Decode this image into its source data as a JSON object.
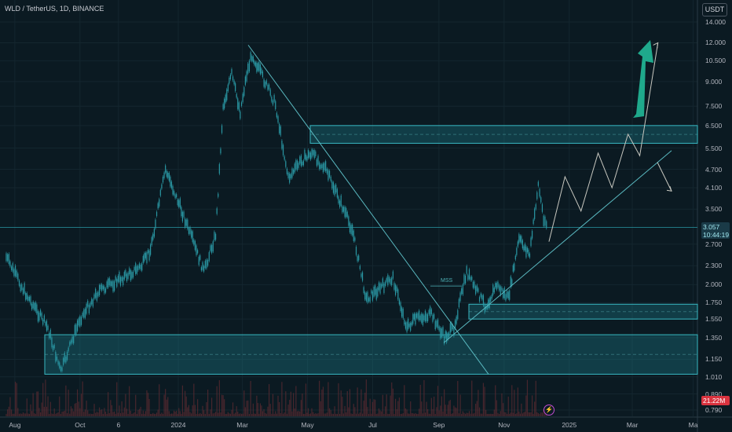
{
  "symbol_line": "WLD / TetherUS, 1D, BINANCE",
  "currency_button": "USDT",
  "price_badge": {
    "price": "3.057",
    "countdown": "10:44:19"
  },
  "volume_badge": "21.22M",
  "annotations": {
    "mss": "MSS"
  },
  "y_ticks": [
    "14.000",
    "12.000",
    "10.500",
    "9.000",
    "7.500",
    "6.500",
    "5.500",
    "4.700",
    "4.100",
    "3.500",
    "3.057",
    "2.700",
    "2.300",
    "2.000",
    "1.750",
    "1.550",
    "1.350",
    "1.150",
    "1.010",
    "0.890",
    "0.790"
  ],
  "x_ticks": [
    "Aug",
    "Oct",
    "6",
    "2024",
    "Mar",
    "May",
    "Jul",
    "Sep",
    "Nov",
    "2025",
    "Mar",
    "Ma"
  ],
  "colors": {
    "background": "#0b1a22",
    "candle": "#2a98a4",
    "zone_fill": "#1f8a94",
    "trendline": "#5ab9c0",
    "arrow": "#1fa98c",
    "projection": "#c8c8c0",
    "volume": "#5c2b32"
  },
  "chart_data": {
    "type": "line",
    "title": "WLD / TetherUS, 1D, BINANCE",
    "xlabel": "",
    "ylabel": "",
    "y_scale": "log",
    "ylim": [
      0.75,
      15
    ],
    "last_price": 3.057,
    "x": [
      "2023-07-24",
      "2023-08-10",
      "2023-09-01",
      "2023-09-13",
      "2023-10-01",
      "2023-10-18",
      "2023-11-15",
      "2023-11-28",
      "2023-12-06",
      "2023-12-20",
      "2024-01-05",
      "2024-01-25",
      "2024-02-05",
      "2024-02-12",
      "2024-02-20",
      "2024-02-28",
      "2024-03-05",
      "2024-03-10",
      "2024-03-20",
      "2024-04-01",
      "2024-04-13",
      "2024-04-25",
      "2024-05-05",
      "2024-05-18",
      "2024-05-30",
      "2024-06-12",
      "2024-06-25",
      "2024-07-08",
      "2024-07-20",
      "2024-08-02",
      "2024-08-10",
      "2024-08-25",
      "2024-09-06",
      "2024-09-15",
      "2024-09-27",
      "2024-10-03",
      "2024-10-15",
      "2024-10-25",
      "2024-11-05",
      "2024-11-15",
      "2024-11-25",
      "2024-12-03",
      "2024-12-08",
      "2024-12-12"
    ],
    "series": [
      {
        "values": [
          2.45,
          1.9,
          1.45,
          1.05,
          1.55,
          1.9,
          2.15,
          2.3,
          2.6,
          4.7,
          3.4,
          2.2,
          2.9,
          7.5,
          9.5,
          7.2,
          9.5,
          11.0,
          9.3,
          7.6,
          4.4,
          5.0,
          5.3,
          4.7,
          3.8,
          3.0,
          1.8,
          1.95,
          2.1,
          1.45,
          1.55,
          1.6,
          1.35,
          1.45,
          2.2,
          2.0,
          1.7,
          2.0,
          1.8,
          2.8,
          2.5,
          4.2,
          3.3,
          3.06
        ]
      }
    ],
    "zones": [
      {
        "from": 1.03,
        "to": 1.38
      },
      {
        "from": 1.55,
        "to": 1.73
      },
      {
        "from": 5.7,
        "to": 6.5
      }
    ],
    "projection": [
      [
        "2024-12-13",
        2.75
      ],
      [
        "2024-12-28",
        4.45
      ],
      [
        "2025-01-12",
        3.45
      ],
      [
        "2025-01-28",
        5.3
      ],
      [
        "2025-02-10",
        4.1
      ],
      [
        "2025-02-25",
        6.1
      ],
      [
        "2025-03-08",
        5.2
      ],
      [
        "2025-03-25",
        12.0
      ]
    ]
  }
}
